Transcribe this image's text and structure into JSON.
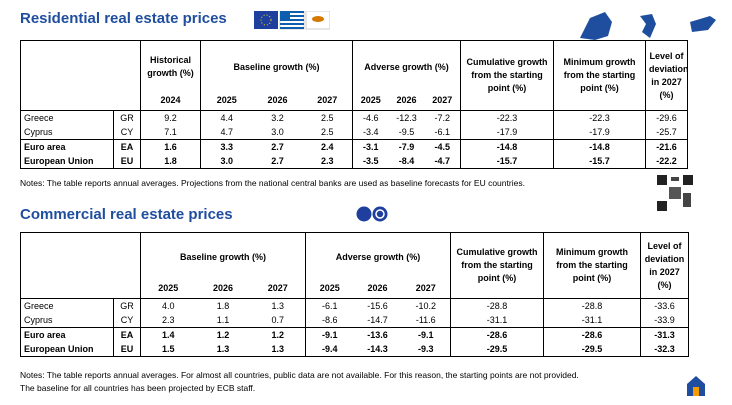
{
  "residential": {
    "title": "Residential real estate prices",
    "table": {
      "groups": [
        {
          "label": "Historical growth (%)",
          "years": [
            "2024"
          ]
        },
        {
          "label": "Baseline growth (%)",
          "years": [
            "2025",
            "2026",
            "2027"
          ]
        },
        {
          "label": "Adverse growth (%)",
          "years": [
            "2025",
            "2026",
            "2027"
          ]
        },
        {
          "label": "Cumulative growth from the starting point (%)",
          "years": []
        },
        {
          "label": "Minimum growth from the starting point (%)",
          "years": []
        },
        {
          "label": "Level of deviation in 2027 (%)",
          "years": []
        }
      ],
      "rows": [
        [
          "Greece",
          "GR",
          "9.2",
          "4.4",
          "3.2",
          "2.5",
          "-4.6",
          "-12.3",
          "-7.2",
          "-22.3",
          "-22.3",
          "-29.6"
        ],
        [
          "Cyprus",
          "CY",
          "7.1",
          "4.7",
          "3.0",
          "2.5",
          "-3.4",
          "-9.5",
          "-6.1",
          "-17.9",
          "-17.9",
          "-25.7"
        ],
        [
          "Euro area",
          "EA",
          "1.6",
          "3.3",
          "2.7",
          "2.4",
          "-3.1",
          "-7.9",
          "-4.5",
          "-14.8",
          "-14.8",
          "-21.6"
        ],
        [
          "European Union",
          "EU",
          "1.8",
          "3.0",
          "2.7",
          "2.3",
          "-3.5",
          "-8.4",
          "-4.7",
          "-15.7",
          "-15.7",
          "-22.2"
        ]
      ]
    },
    "notes": [
      "Notes: The table reports annual averages. Projections from the national central banks are used as baseline forecasts for EU countries."
    ]
  },
  "commercial": {
    "title": "Commercial real estate prices",
    "table": {
      "groups": [
        {
          "label": "Baseline growth (%)",
          "years": [
            "2025",
            "2026",
            "2027"
          ]
        },
        {
          "label": "Adverse growth (%)",
          "years": [
            "2025",
            "2026",
            "2027"
          ]
        },
        {
          "label": "Cumulative growth from the starting point (%)",
          "years": []
        },
        {
          "label": "Minimum growth from the starting point (%)",
          "years": []
        },
        {
          "label": "Level of deviation in 2027 (%)",
          "years": []
        }
      ],
      "rows": [
        [
          "Greece",
          "GR",
          "4.0",
          "1.8",
          "1.3",
          "-6.1",
          "-15.6",
          "-10.2",
          "-28.8",
          "-28.8",
          "-33.6"
        ],
        [
          "Cyprus",
          "CY",
          "2.3",
          "1.1",
          "0.7",
          "-8.6",
          "-14.7",
          "-11.6",
          "-31.1",
          "-31.1",
          "-33.9"
        ],
        [
          "Euro area",
          "EA",
          "1.4",
          "1.2",
          "1.2",
          "-9.1",
          "-13.6",
          "-9.1",
          "-28.6",
          "-28.6",
          "-31.3"
        ],
        [
          "European Union",
          "EU",
          "1.5",
          "1.3",
          "1.3",
          "-9.4",
          "-14.3",
          "-9.3",
          "-29.5",
          "-29.5",
          "-32.3"
        ]
      ]
    },
    "notes": [
      "Notes: The table reports annual averages. For almost all countries, public data are not available. For this reason, the starting points are not provided.",
      "The baseline for all countries  has been projected by ECB staff."
    ]
  }
}
